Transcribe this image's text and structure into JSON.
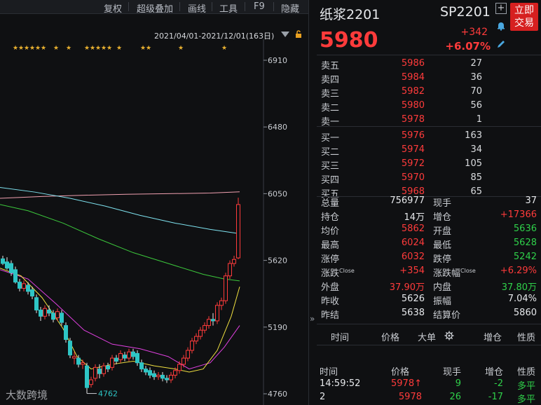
{
  "toolbar": {
    "items": [
      "复权",
      "超级叠加",
      "画线",
      "工具",
      "F9",
      "隐藏"
    ]
  },
  "chart": {
    "range_label": "2021/04/01-2021/12/01(163日)",
    "y_ticks": [
      "6910",
      "6480",
      "6050",
      "5620",
      "5190",
      "4760"
    ],
    "low_label": "4762",
    "colors": {
      "up": "#ff3b3b",
      "down": "#2ec5c5",
      "ma_cyan": "#7fe3f0",
      "ma_pink": "#f0a0b0",
      "ma_green": "#3cc83c",
      "ma_yellow": "#f0e040",
      "ma_magenta": "#e040e0",
      "star": "#e8b030"
    }
  },
  "quote": {
    "name": "纸浆2201",
    "code": "SP2201",
    "price": "5980",
    "change": "+342",
    "change_pct": "+6.07%",
    "trade_button": "立即交易",
    "icons": [
      "plus-icon",
      "bell-icon",
      "edit-icon"
    ]
  },
  "orderbook": [
    {
      "label": "卖五",
      "price": "5986",
      "vol": "27"
    },
    {
      "label": "卖四",
      "price": "5984",
      "vol": "36"
    },
    {
      "label": "卖三",
      "price": "5982",
      "vol": "70"
    },
    {
      "label": "卖二",
      "price": "5980",
      "vol": "56"
    },
    {
      "label": "卖一",
      "price": "5978",
      "vol": "1"
    },
    {
      "label": "买一",
      "price": "5976",
      "vol": "163"
    },
    {
      "label": "买二",
      "price": "5974",
      "vol": "34"
    },
    {
      "label": "买三",
      "price": "5972",
      "vol": "105"
    },
    {
      "label": "买四",
      "price": "5970",
      "vol": "85"
    },
    {
      "label": "买五",
      "price": "5968",
      "vol": "65"
    }
  ],
  "stats": [
    {
      "l1": "总量",
      "v1": "756977",
      "c1": "white",
      "l2": "现手",
      "v2": "37",
      "c2": "white"
    },
    {
      "l1": "持仓",
      "v1": "14万",
      "c1": "white",
      "l2": "增仓",
      "v2": "+17366",
      "c2": "red"
    },
    {
      "l1": "均价",
      "v1": "5862",
      "c1": "red",
      "l2": "开盘",
      "v2": "5636",
      "c2": "green"
    },
    {
      "l1": "最高",
      "v1": "6024",
      "c1": "red",
      "l2": "最低",
      "v2": "5628",
      "c2": "green"
    },
    {
      "l1": "涨停",
      "v1": "6032",
      "c1": "red",
      "l2": "跌停",
      "v2": "5242",
      "c2": "green"
    },
    {
      "l1": "涨跌",
      "l1sup": "Close",
      "v1": "+354",
      "c1": "red",
      "l2": "涨跌幅",
      "l2sup": "Close",
      "v2": "+6.29%",
      "c2": "red"
    },
    {
      "l1": "外盘",
      "v1": "37.90万",
      "c1": "red",
      "l2": "内盘",
      "v2": "37.80万",
      "c2": "green"
    },
    {
      "l1": "昨收",
      "v1": "5626",
      "c1": "white",
      "l2": "振幅",
      "v2": "7.04%",
      "c2": "white"
    },
    {
      "l1": "昨结",
      "v1": "5638",
      "c1": "white",
      "l2": "结算价",
      "v2": "5860",
      "c2": "white"
    }
  ],
  "tabs": [
    "时间",
    "价格",
    "大单",
    "增仓",
    "性质"
  ],
  "ticks": {
    "headers": [
      "时间",
      "价格",
      "现手",
      "增仓",
      "性质"
    ],
    "rows": [
      {
        "time": "14:59:52",
        "price": "5978",
        "arrow": "↑",
        "vol": "9",
        "vol_color": "green",
        "oi": "-2",
        "nature": "多平"
      },
      {
        "time": "2",
        "price": "5978",
        "arrow": "",
        "vol": "26",
        "vol_color": "green",
        "oi": "-17",
        "nature": "多平"
      }
    ]
  },
  "watermark": "大数跨境"
}
